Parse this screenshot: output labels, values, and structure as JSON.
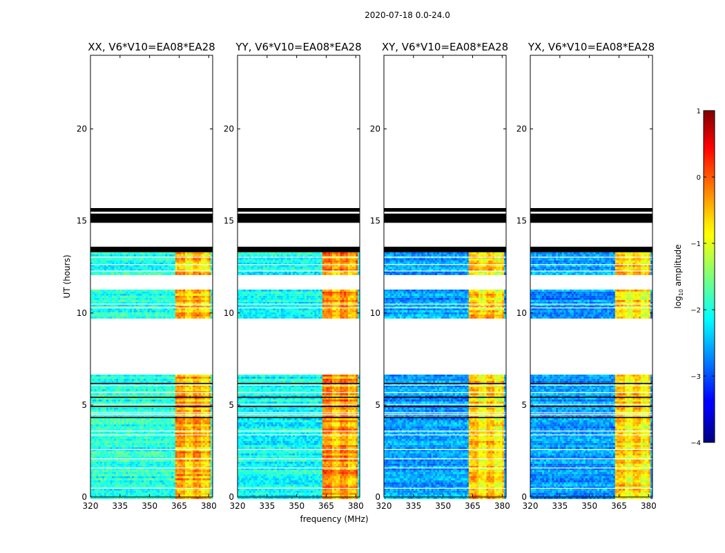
{
  "title": "2020-07-18 0.0-24.0",
  "xlabel": "frequency (MHz)",
  "ylabel": "UT (hours)",
  "colorbar": {
    "label": "log",
    "label_sub": "10",
    "label_rest": " amplitude",
    "range": [
      -4,
      1
    ],
    "ticks": [
      "1",
      "0",
      "−1",
      "−2",
      "−3",
      "−4"
    ]
  },
  "chart_data": {
    "type": "heatmap",
    "xlim": [
      320,
      382
    ],
    "ylim": [
      0,
      24
    ],
    "xticks": [
      320,
      335,
      350,
      365,
      380
    ],
    "yticks": [
      0,
      5,
      10,
      15,
      20
    ],
    "xtick_labels": [
      "320",
      "335",
      "350",
      "365",
      "380"
    ],
    "ytick_labels": [
      "0",
      "5",
      "10",
      "15",
      "20"
    ],
    "data_extent_hours": [
      0,
      13.3
    ],
    "black_bands_hours": [
      [
        13.3,
        13.6
      ],
      [
        14.9,
        15.4
      ],
      [
        15.5,
        15.7
      ]
    ],
    "white_gaps_hours": [
      [
        6.65,
        9.75
      ],
      [
        11.3,
        12.05
      ]
    ],
    "bright_band_mhz": [
      363.5,
      380.5
    ],
    "panels": [
      {
        "title": "XX, V6*V10=EA08*EA28",
        "background_level": -1.95,
        "band_level": -0.5
      },
      {
        "title": "YY, V6*V10=EA08*EA28",
        "background_level": -2.1,
        "band_level": -0.35
      },
      {
        "title": "XY, V6*V10=EA08*EA28",
        "background_level": -2.6,
        "band_level": -0.7
      },
      {
        "title": "YX, V6*V10=EA08*EA28",
        "background_level": -2.6,
        "band_level": -0.7
      }
    ]
  }
}
